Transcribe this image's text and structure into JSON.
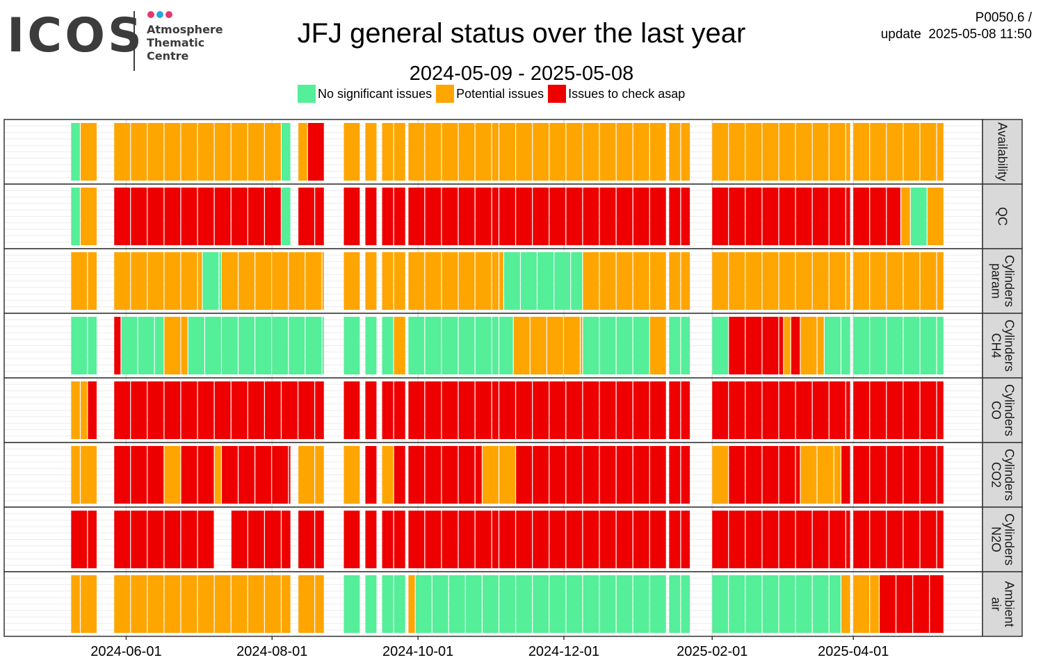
{
  "logo": {
    "wordmark": "ICOS",
    "subtitle_lines": [
      "Atmosphere",
      "Thematic",
      "Centre"
    ],
    "dot_colors": [
      "#e6356f",
      "#2aa4e0",
      "#e6356f"
    ],
    "text_color": "#3c3c3c"
  },
  "header": {
    "version": "P0050.6 /",
    "update_label": "update",
    "update_time": "2025-05-08 11:50"
  },
  "chart_data": {
    "type": "heatmap",
    "title": "JFJ general status over the last year",
    "subtitle": "2024-05-09 - 2025-05-08",
    "date_range": [
      "2024-05-09",
      "2025-05-08"
    ],
    "x_axis_range": [
      "2024-04-11",
      "2025-05-25"
    ],
    "x_ticks": [
      "2024-06-01",
      "2024-08-01",
      "2024-10-01",
      "2024-12-01",
      "2025-02-01",
      "2025-04-01"
    ],
    "bin_days": 7,
    "grid": true,
    "legend_position": "top",
    "legend": [
      {
        "key": "G",
        "label": "No significant issues",
        "color": "#55EE99"
      },
      {
        "key": "O",
        "label": "Potential issues",
        "color": "#FFA500"
      },
      {
        "key": "R",
        "label": "Issues to check asap",
        "color": "#EE0000"
      }
    ],
    "rows": [
      {
        "label": "Availability",
        "cells": [
          {
            "start": "2024-05-09",
            "end": "2024-05-12",
            "status": "G"
          },
          {
            "start": "2024-05-13",
            "end": "2024-05-19",
            "status": "O"
          },
          {
            "start": "2024-05-27",
            "end": "2024-08-04",
            "status": "O"
          },
          {
            "start": "2024-08-05",
            "end": "2024-08-08",
            "status": "G"
          },
          {
            "start": "2024-08-12",
            "end": "2024-08-15",
            "status": "O"
          },
          {
            "start": "2024-08-16",
            "end": "2024-08-22",
            "status": "R"
          },
          {
            "start": "2024-08-31",
            "end": "2024-09-06",
            "status": "O"
          },
          {
            "start": "2024-09-09",
            "end": "2024-09-13",
            "status": "O"
          },
          {
            "start": "2024-09-16",
            "end": "2024-09-20",
            "status": "O"
          },
          {
            "start": "2024-09-21",
            "end": "2024-09-25",
            "status": "O"
          },
          {
            "start": "2024-09-27",
            "end": "2024-11-03",
            "status": "O"
          },
          {
            "start": "2024-11-04",
            "end": "2025-01-12",
            "status": "O"
          },
          {
            "start": "2025-01-14",
            "end": "2025-01-18",
            "status": "O"
          },
          {
            "start": "2025-01-19",
            "end": "2025-01-22",
            "status": "O"
          },
          {
            "start": "2025-02-01",
            "end": "2025-03-30",
            "status": "O"
          },
          {
            "start": "2025-04-01",
            "end": "2025-05-08",
            "status": "O"
          }
        ]
      },
      {
        "label": "QC",
        "cells": [
          {
            "start": "2024-05-09",
            "end": "2024-05-12",
            "status": "G"
          },
          {
            "start": "2024-05-13",
            "end": "2024-05-19",
            "status": "O"
          },
          {
            "start": "2024-05-27",
            "end": "2024-08-04",
            "status": "R"
          },
          {
            "start": "2024-08-05",
            "end": "2024-08-08",
            "status": "G"
          },
          {
            "start": "2024-08-12",
            "end": "2024-08-22",
            "status": "R"
          },
          {
            "start": "2024-08-31",
            "end": "2024-09-06",
            "status": "R"
          },
          {
            "start": "2024-09-09",
            "end": "2024-09-13",
            "status": "R"
          },
          {
            "start": "2024-09-16",
            "end": "2024-09-20",
            "status": "R"
          },
          {
            "start": "2024-09-21",
            "end": "2024-09-25",
            "status": "R"
          },
          {
            "start": "2024-09-27",
            "end": "2024-11-03",
            "status": "R"
          },
          {
            "start": "2024-11-04",
            "end": "2025-01-12",
            "status": "R"
          },
          {
            "start": "2025-01-14",
            "end": "2025-01-18",
            "status": "R"
          },
          {
            "start": "2025-01-19",
            "end": "2025-01-22",
            "status": "R"
          },
          {
            "start": "2025-02-01",
            "end": "2025-03-30",
            "status": "R"
          },
          {
            "start": "2025-04-01",
            "end": "2025-04-20",
            "status": "R"
          },
          {
            "start": "2025-04-21",
            "end": "2025-04-24",
            "status": "O"
          },
          {
            "start": "2025-04-25",
            "end": "2025-05-01",
            "status": "G"
          },
          {
            "start": "2025-05-02",
            "end": "2025-05-08",
            "status": "O"
          }
        ]
      },
      {
        "label": "Cylinders param",
        "cells": [
          {
            "start": "2024-05-09",
            "end": "2024-05-19",
            "status": "O"
          },
          {
            "start": "2024-05-27",
            "end": "2024-07-02",
            "status": "O"
          },
          {
            "start": "2024-07-03",
            "end": "2024-07-10",
            "status": "G"
          },
          {
            "start": "2024-07-11",
            "end": "2024-08-22",
            "status": "O"
          },
          {
            "start": "2024-08-31",
            "end": "2024-09-06",
            "status": "O"
          },
          {
            "start": "2024-09-09",
            "end": "2024-09-13",
            "status": "O"
          },
          {
            "start": "2024-09-16",
            "end": "2024-09-20",
            "status": "O"
          },
          {
            "start": "2024-09-21",
            "end": "2024-09-25",
            "status": "O"
          },
          {
            "start": "2024-09-27",
            "end": "2024-11-03",
            "status": "O"
          },
          {
            "start": "2024-11-04",
            "end": "2024-11-05",
            "status": "O"
          },
          {
            "start": "2024-11-06",
            "end": "2024-12-08",
            "status": "G"
          },
          {
            "start": "2024-12-09",
            "end": "2025-01-12",
            "status": "O"
          },
          {
            "start": "2025-01-14",
            "end": "2025-01-18",
            "status": "O"
          },
          {
            "start": "2025-01-19",
            "end": "2025-01-22",
            "status": "O"
          },
          {
            "start": "2025-02-01",
            "end": "2025-03-30",
            "status": "O"
          },
          {
            "start": "2025-04-01",
            "end": "2025-05-08",
            "status": "O"
          }
        ]
      },
      {
        "label": "Cylinders CH4",
        "cells": [
          {
            "start": "2024-05-09",
            "end": "2024-05-19",
            "status": "G"
          },
          {
            "start": "2024-05-27",
            "end": "2024-05-29",
            "status": "R"
          },
          {
            "start": "2024-05-30",
            "end": "2024-06-16",
            "status": "G"
          },
          {
            "start": "2024-06-17",
            "end": "2024-06-26",
            "status": "O"
          },
          {
            "start": "2024-06-27",
            "end": "2024-08-22",
            "status": "G"
          },
          {
            "start": "2024-08-31",
            "end": "2024-09-06",
            "status": "G"
          },
          {
            "start": "2024-09-09",
            "end": "2024-09-13",
            "status": "G"
          },
          {
            "start": "2024-09-16",
            "end": "2024-09-20",
            "status": "G"
          },
          {
            "start": "2024-09-21",
            "end": "2024-09-25",
            "status": "O"
          },
          {
            "start": "2024-09-27",
            "end": "2024-11-03",
            "status": "G"
          },
          {
            "start": "2024-11-04",
            "end": "2024-11-09",
            "status": "G"
          },
          {
            "start": "2024-11-10",
            "end": "2024-12-08",
            "status": "O"
          },
          {
            "start": "2024-12-09",
            "end": "2025-01-05",
            "status": "G"
          },
          {
            "start": "2025-01-06",
            "end": "2025-01-12",
            "status": "O"
          },
          {
            "start": "2025-01-14",
            "end": "2025-01-18",
            "status": "G"
          },
          {
            "start": "2025-01-19",
            "end": "2025-01-22",
            "status": "G"
          },
          {
            "start": "2025-02-01",
            "end": "2025-02-07",
            "status": "G"
          },
          {
            "start": "2025-02-08",
            "end": "2025-03-02",
            "status": "R"
          },
          {
            "start": "2025-03-03",
            "end": "2025-03-05",
            "status": "O"
          },
          {
            "start": "2025-03-06",
            "end": "2025-03-09",
            "status": "R"
          },
          {
            "start": "2025-03-10",
            "end": "2025-03-19",
            "status": "O"
          },
          {
            "start": "2025-03-20",
            "end": "2025-03-30",
            "status": "G"
          },
          {
            "start": "2025-04-01",
            "end": "2025-05-08",
            "status": "G"
          }
        ]
      },
      {
        "label": "Cylinders CO",
        "cells": [
          {
            "start": "2024-05-09",
            "end": "2024-05-12",
            "status": "O"
          },
          {
            "start": "2024-05-13",
            "end": "2024-05-15",
            "status": "O"
          },
          {
            "start": "2024-05-16",
            "end": "2024-05-19",
            "status": "R"
          },
          {
            "start": "2024-05-27",
            "end": "2024-08-22",
            "status": "R"
          },
          {
            "start": "2024-08-31",
            "end": "2024-09-06",
            "status": "R"
          },
          {
            "start": "2024-09-09",
            "end": "2024-09-13",
            "status": "R"
          },
          {
            "start": "2024-09-16",
            "end": "2024-09-20",
            "status": "R"
          },
          {
            "start": "2024-09-21",
            "end": "2024-09-25",
            "status": "R"
          },
          {
            "start": "2024-09-27",
            "end": "2024-11-03",
            "status": "R"
          },
          {
            "start": "2024-11-04",
            "end": "2025-01-12",
            "status": "R"
          },
          {
            "start": "2025-01-14",
            "end": "2025-01-18",
            "status": "R"
          },
          {
            "start": "2025-01-19",
            "end": "2025-01-22",
            "status": "R"
          },
          {
            "start": "2025-02-01",
            "end": "2025-03-30",
            "status": "R"
          },
          {
            "start": "2025-04-01",
            "end": "2025-05-08",
            "status": "R"
          }
        ]
      },
      {
        "label": "Cylinders CO2",
        "cells": [
          {
            "start": "2024-05-09",
            "end": "2024-05-12",
            "status": "O"
          },
          {
            "start": "2024-05-13",
            "end": "2024-05-19",
            "status": "O"
          },
          {
            "start": "2024-05-27",
            "end": "2024-06-16",
            "status": "R"
          },
          {
            "start": "2024-06-17",
            "end": "2024-06-23",
            "status": "O"
          },
          {
            "start": "2024-06-24",
            "end": "2024-07-07",
            "status": "R"
          },
          {
            "start": "2024-07-08",
            "end": "2024-07-10",
            "status": "O"
          },
          {
            "start": "2024-07-11",
            "end": "2024-08-08",
            "status": "R"
          },
          {
            "start": "2024-08-12",
            "end": "2024-08-22",
            "status": "O"
          },
          {
            "start": "2024-08-31",
            "end": "2024-09-06",
            "status": "O"
          },
          {
            "start": "2024-09-09",
            "end": "2024-09-13",
            "status": "R"
          },
          {
            "start": "2024-09-16",
            "end": "2024-09-20",
            "status": "O"
          },
          {
            "start": "2024-09-21",
            "end": "2024-09-25",
            "status": "R"
          },
          {
            "start": "2024-09-27",
            "end": "2024-10-27",
            "status": "R"
          },
          {
            "start": "2024-10-28",
            "end": "2024-11-03",
            "status": "O"
          },
          {
            "start": "2024-11-04",
            "end": "2024-11-10",
            "status": "O"
          },
          {
            "start": "2024-11-11",
            "end": "2025-01-12",
            "status": "R"
          },
          {
            "start": "2025-01-14",
            "end": "2025-01-18",
            "status": "R"
          },
          {
            "start": "2025-01-19",
            "end": "2025-01-22",
            "status": "R"
          },
          {
            "start": "2025-02-01",
            "end": "2025-02-07",
            "status": "O"
          },
          {
            "start": "2025-02-08",
            "end": "2025-03-09",
            "status": "R"
          },
          {
            "start": "2025-03-10",
            "end": "2025-03-26",
            "status": "O"
          },
          {
            "start": "2025-03-27",
            "end": "2025-03-30",
            "status": "R"
          },
          {
            "start": "2025-04-01",
            "end": "2025-05-08",
            "status": "R"
          }
        ]
      },
      {
        "label": "Cylinders N2O",
        "cells": [
          {
            "start": "2024-05-09",
            "end": "2024-05-19",
            "status": "R"
          },
          {
            "start": "2024-05-27",
            "end": "2024-07-07",
            "status": "R"
          },
          {
            "start": "2024-07-15",
            "end": "2024-08-08",
            "status": "R"
          },
          {
            "start": "2024-08-12",
            "end": "2024-08-22",
            "status": "R"
          },
          {
            "start": "2024-08-31",
            "end": "2024-09-06",
            "status": "R"
          },
          {
            "start": "2024-09-09",
            "end": "2024-09-13",
            "status": "R"
          },
          {
            "start": "2024-09-16",
            "end": "2024-09-20",
            "status": "R"
          },
          {
            "start": "2024-09-21",
            "end": "2024-09-25",
            "status": "R"
          },
          {
            "start": "2024-09-27",
            "end": "2024-11-03",
            "status": "R"
          },
          {
            "start": "2024-11-04",
            "end": "2025-01-12",
            "status": "R"
          },
          {
            "start": "2025-01-14",
            "end": "2025-01-18",
            "status": "R"
          },
          {
            "start": "2025-01-19",
            "end": "2025-01-22",
            "status": "R"
          },
          {
            "start": "2025-02-01",
            "end": "2025-03-30",
            "status": "R"
          },
          {
            "start": "2025-04-01",
            "end": "2025-05-08",
            "status": "R"
          }
        ]
      },
      {
        "label": "Ambient air",
        "cells": [
          {
            "start": "2024-05-09",
            "end": "2024-05-12",
            "status": "O"
          },
          {
            "start": "2024-05-13",
            "end": "2024-05-19",
            "status": "O"
          },
          {
            "start": "2024-05-27",
            "end": "2024-08-08",
            "status": "O"
          },
          {
            "start": "2024-08-12",
            "end": "2024-08-22",
            "status": "O"
          },
          {
            "start": "2024-08-31",
            "end": "2024-09-06",
            "status": "G"
          },
          {
            "start": "2024-09-09",
            "end": "2024-09-13",
            "status": "G"
          },
          {
            "start": "2024-09-16",
            "end": "2024-09-20",
            "status": "G"
          },
          {
            "start": "2024-09-21",
            "end": "2024-09-25",
            "status": "G"
          },
          {
            "start": "2024-09-27",
            "end": "2024-09-29",
            "status": "O"
          },
          {
            "start": "2024-09-30",
            "end": "2024-11-03",
            "status": "G"
          },
          {
            "start": "2024-11-04",
            "end": "2025-01-12",
            "status": "G"
          },
          {
            "start": "2025-01-14",
            "end": "2025-01-18",
            "status": "G"
          },
          {
            "start": "2025-01-19",
            "end": "2025-01-22",
            "status": "G"
          },
          {
            "start": "2025-02-01",
            "end": "2025-03-26",
            "status": "G"
          },
          {
            "start": "2025-03-27",
            "end": "2025-03-30",
            "status": "O"
          },
          {
            "start": "2025-04-01",
            "end": "2025-04-11",
            "status": "O"
          },
          {
            "start": "2025-04-12",
            "end": "2025-05-08",
            "status": "R"
          }
        ]
      }
    ]
  }
}
